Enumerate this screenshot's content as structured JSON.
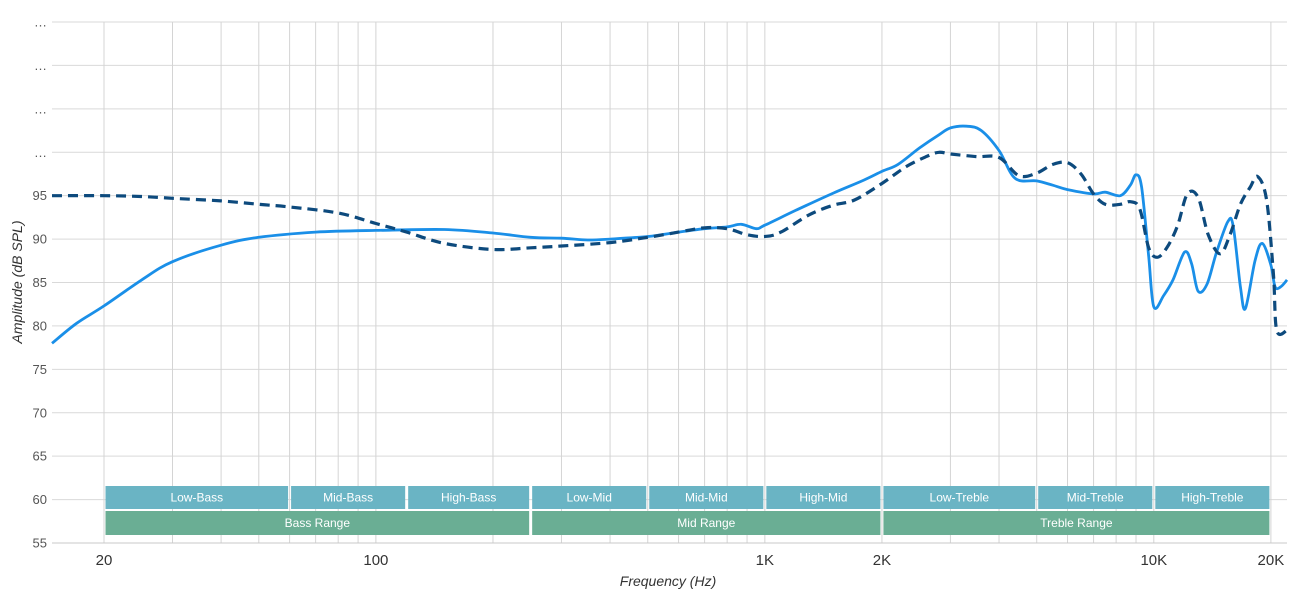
{
  "chart_data": {
    "type": "line",
    "xlabel": "Frequency (Hz)",
    "ylabel": "Amplitude (dB SPL)",
    "x_scale": "log",
    "xlim": [
      14.7,
      22000
    ],
    "ylim": [
      55,
      115
    ],
    "grid": true,
    "x_tick_labels": [
      {
        "value": 20,
        "label": "20"
      },
      {
        "value": 100,
        "label": "100"
      },
      {
        "value": 1000,
        "label": "1K"
      },
      {
        "value": 2000,
        "label": "2K"
      },
      {
        "value": 10000,
        "label": "10K"
      },
      {
        "value": 20000,
        "label": "20K"
      }
    ],
    "y_tick_labels": [
      {
        "value": 55,
        "label": "55"
      },
      {
        "value": 60,
        "label": "60"
      },
      {
        "value": 65,
        "label": "65"
      },
      {
        "value": 70,
        "label": "70"
      },
      {
        "value": 75,
        "label": "75"
      },
      {
        "value": 80,
        "label": "80"
      },
      {
        "value": 85,
        "label": "85"
      },
      {
        "value": 90,
        "label": "90"
      },
      {
        "value": 95,
        "label": "95"
      },
      {
        "value": 100,
        "label": "…"
      },
      {
        "value": 105,
        "label": "…"
      },
      {
        "value": 110,
        "label": "…"
      },
      {
        "value": 115,
        "label": "…"
      }
    ],
    "series": [
      {
        "style": "solid",
        "color": "#1a8fe8",
        "points": [
          [
            14.7,
            78
          ],
          [
            17,
            80.3
          ],
          [
            20,
            82.3
          ],
          [
            25,
            85.3
          ],
          [
            30,
            87.4
          ],
          [
            40,
            89.3
          ],
          [
            50,
            90.2
          ],
          [
            70,
            90.8
          ],
          [
            100,
            91.0
          ],
          [
            150,
            91.1
          ],
          [
            200,
            90.7
          ],
          [
            250,
            90.2
          ],
          [
            300,
            90.1
          ],
          [
            350,
            89.9
          ],
          [
            400,
            90.0
          ],
          [
            500,
            90.3
          ],
          [
            600,
            90.8
          ],
          [
            700,
            91.2
          ],
          [
            800,
            91.4
          ],
          [
            870,
            91.7
          ],
          [
            950,
            91.2
          ],
          [
            1000,
            91.6
          ],
          [
            1200,
            93.3
          ],
          [
            1500,
            95.3
          ],
          [
            1800,
            96.8
          ],
          [
            2000,
            97.8
          ],
          [
            2200,
            98.6
          ],
          [
            2500,
            100.5
          ],
          [
            2800,
            102.0
          ],
          [
            3000,
            102.8
          ],
          [
            3300,
            103.0
          ],
          [
            3600,
            102.5
          ],
          [
            4000,
            100.2
          ],
          [
            4400,
            97.0
          ],
          [
            5000,
            96.7
          ],
          [
            5500,
            96.2
          ],
          [
            6000,
            95.7
          ],
          [
            7000,
            95.2
          ],
          [
            7500,
            95.4
          ],
          [
            8200,
            95.0
          ],
          [
            8700,
            96.2
          ],
          [
            9000,
            97.4
          ],
          [
            9300,
            96.0
          ],
          [
            9700,
            88.0
          ],
          [
            10000,
            82.2
          ],
          [
            10600,
            83.5
          ],
          [
            11200,
            85.3
          ],
          [
            12000,
            88.5
          ],
          [
            12500,
            87.2
          ],
          [
            13000,
            84.0
          ],
          [
            13700,
            84.8
          ],
          [
            14500,
            88.5
          ],
          [
            15500,
            92.0
          ],
          [
            16000,
            91.5
          ],
          [
            16700,
            84.5
          ],
          [
            17200,
            82.0
          ],
          [
            18200,
            87.5
          ],
          [
            19000,
            89.5
          ],
          [
            20000,
            87.0
          ],
          [
            20500,
            84.5
          ],
          [
            21200,
            84.5
          ],
          [
            22000,
            85.3
          ]
        ]
      },
      {
        "style": "dashed",
        "color": "#0d4a7d",
        "points": [
          [
            14.7,
            95
          ],
          [
            20,
            95
          ],
          [
            25,
            94.9
          ],
          [
            30,
            94.7
          ],
          [
            40,
            94.4
          ],
          [
            50,
            94.0
          ],
          [
            60,
            93.7
          ],
          [
            80,
            93.0
          ],
          [
            100,
            91.8
          ],
          [
            120,
            90.8
          ],
          [
            150,
            89.5
          ],
          [
            200,
            88.8
          ],
          [
            250,
            89.0
          ],
          [
            300,
            89.2
          ],
          [
            400,
            89.6
          ],
          [
            500,
            90.2
          ],
          [
            600,
            90.8
          ],
          [
            700,
            91.3
          ],
          [
            800,
            91.2
          ],
          [
            900,
            90.5
          ],
          [
            1000,
            90.3
          ],
          [
            1100,
            90.8
          ],
          [
            1300,
            92.8
          ],
          [
            1500,
            93.9
          ],
          [
            1700,
            94.5
          ],
          [
            2000,
            96.4
          ],
          [
            2300,
            98.3
          ],
          [
            2600,
            99.5
          ],
          [
            2800,
            100.0
          ],
          [
            3000,
            99.8
          ],
          [
            3500,
            99.5
          ],
          [
            4000,
            99.4
          ],
          [
            4500,
            97.3
          ],
          [
            5000,
            97.6
          ],
          [
            5500,
            98.6
          ],
          [
            6000,
            98.8
          ],
          [
            6500,
            97.5
          ],
          [
            7000,
            95.2
          ],
          [
            7500,
            94.0
          ],
          [
            8200,
            94.0
          ],
          [
            8700,
            94.3
          ],
          [
            9200,
            93.5
          ],
          [
            9700,
            89.0
          ],
          [
            10200,
            87.9
          ],
          [
            10800,
            89.0
          ],
          [
            11500,
            91.5
          ],
          [
            12200,
            95.2
          ],
          [
            13000,
            94.8
          ],
          [
            13800,
            90.5
          ],
          [
            14800,
            88.3
          ],
          [
            15700,
            90.5
          ],
          [
            16700,
            94.0
          ],
          [
            17700,
            96.0
          ],
          [
            18500,
            97.2
          ],
          [
            19500,
            94.5
          ],
          [
            20300,
            86.0
          ],
          [
            20700,
            79.5
          ],
          [
            22000,
            79.5
          ]
        ]
      }
    ],
    "bands_top": [
      {
        "label": "Low-Bass",
        "from": 20,
        "to": 60,
        "color": "#6ab4c4"
      },
      {
        "label": "Mid-Bass",
        "from": 60,
        "to": 120,
        "color": "#6ab4c4"
      },
      {
        "label": "High-Bass",
        "from": 120,
        "to": 250,
        "color": "#6ab4c4"
      },
      {
        "label": "Low-Mid",
        "from": 250,
        "to": 500,
        "color": "#6ab4c4"
      },
      {
        "label": "Mid-Mid",
        "from": 500,
        "to": 1000,
        "color": "#6ab4c4"
      },
      {
        "label": "High-Mid",
        "from": 1000,
        "to": 2000,
        "color": "#6ab4c4"
      },
      {
        "label": "Low-Treble",
        "from": 2000,
        "to": 5000,
        "color": "#6ab4c4"
      },
      {
        "label": "Mid-Treble",
        "from": 5000,
        "to": 10000,
        "color": "#6ab4c4"
      },
      {
        "label": "High-Treble",
        "from": 10000,
        "to": 20000,
        "color": "#6ab4c4"
      }
    ],
    "bands_bottom": [
      {
        "label": "Bass Range",
        "from": 20,
        "to": 250,
        "color": "#6aae94"
      },
      {
        "label": "Mid Range",
        "from": 250,
        "to": 2000,
        "color": "#6aae94"
      },
      {
        "label": "Treble Range",
        "from": 2000,
        "to": 20000,
        "color": "#6aae94"
      }
    ]
  }
}
